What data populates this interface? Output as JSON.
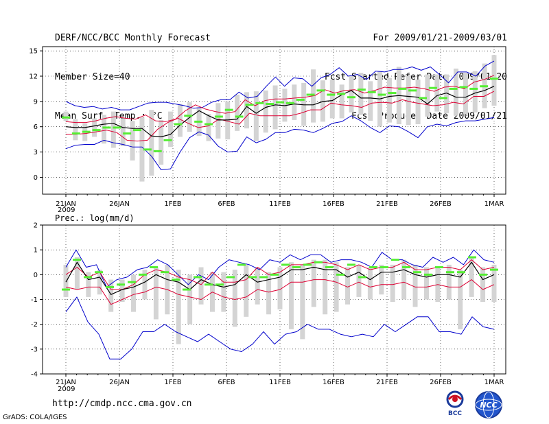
{
  "header": {
    "title": "DERF/NCC/BCC Monthly Forecast",
    "member_size": "Member Size=40",
    "variable": "Mean Surf. Temp.: °C",
    "period": "For 2009/01/21-2009/03/01",
    "started": "Fcst Started Refer Date 2009/01/20",
    "produced": "Fcst Produced Date 2009/01/21"
  },
  "footer": {
    "url": "http://cmdp.ncc.cma.gov.cn",
    "credit": "GrADS: COLA/IGES",
    "logo_bcc": "BCC",
    "logo_ncc": "NCC"
  },
  "colors": {
    "envelope": "#0000cc",
    "spread": "#dd0033",
    "mean": "#000000",
    "obs": "#55ee33",
    "box": "#d4d4d4"
  },
  "chart_data": [
    {
      "type": "line",
      "title": "Mean Surf. Temp.: °C",
      "x_tick_labels": [
        "21JAN",
        "26JAN",
        "1FEB",
        "6FEB",
        "11FEB",
        "16FEB",
        "21FEB",
        "26FEB",
        "1MAR"
      ],
      "x_year_label": "2009",
      "y_ticks": [
        0,
        3,
        6,
        9,
        12,
        15
      ],
      "ylim": [
        -2,
        15.5
      ],
      "days": 41,
      "series": [
        {
          "name": "ensemble max",
          "values": [
            3.4,
            3.8,
            3.9,
            3.9,
            4.4,
            4.1,
            3.9,
            3.6,
            3.6,
            2.5,
            0.9,
            1.0,
            3.0,
            4.7,
            5.4,
            5.0,
            3.7,
            3.0,
            3.1,
            4.8,
            4.1,
            4.5,
            5.3,
            5.3,
            5.7,
            5.6,
            5.3,
            5.8,
            6.4,
            6.6,
            7.3,
            6.7,
            5.9,
            5.3,
            6.1,
            6.0,
            5.4,
            4.7,
            6.0,
            6.3,
            6.1,
            6.5,
            6.7,
            6.7,
            6.9,
            7.1
          ]
        },
        {
          "name": "ensemble min",
          "values": [
            9.0,
            8.5,
            8.3,
            8.4,
            8.1,
            8.3,
            8.0,
            8.0,
            8.4,
            8.8,
            8.9,
            8.9,
            8.7,
            8.5,
            8.2,
            8.3,
            8.9,
            9.2,
            9.2,
            10.1,
            9.4,
            9.6,
            10.8,
            11.9,
            10.8,
            11.8,
            11.7,
            10.8,
            11.8,
            12.2,
            13.0,
            12.0,
            12.2,
            11.6,
            12.6,
            12.5,
            12.8,
            12.8,
            13.1,
            12.7,
            13.1,
            12.2,
            11.2,
            12.5,
            12.5,
            12.0,
            13.2,
            13.8
          ]
        }
      ],
      "upper_band": [
        6.6,
        6.5,
        6.5,
        6.7,
        7.0,
        7.2,
        7.0,
        6.9,
        7.4,
        6.7,
        6.6,
        6.9,
        7.9,
        8.6,
        8.1,
        7.8,
        7.6,
        7.8,
        9.2,
        8.5,
        9.1,
        9.3,
        9.3,
        9.4,
        9.5,
        9.7,
        10.4,
        10.0,
        10.3,
        10.4,
        10.0,
        10.3,
        10.7,
        10.6,
        10.6,
        10.7,
        10.5,
        10.2,
        10.7,
        10.8,
        10.5,
        11.3,
        11.6,
        12.1
      ],
      "lower_band": [
        5.1,
        5.1,
        5.2,
        5.4,
        5.6,
        5.3,
        4.4,
        4.3,
        4.4,
        5.7,
        6.5,
        7.0,
        6.4,
        5.9,
        6.1,
        6.9,
        6.6,
        6.3,
        7.6,
        7.3,
        7.3,
        7.3,
        7.3,
        7.6,
        8.0,
        8.0,
        8.8,
        8.6,
        8.5,
        8.3,
        8.8,
        8.9,
        8.8,
        9.2,
        8.9,
        8.7,
        8.5,
        8.6,
        8.9,
        8.7,
        9.6,
        9.6,
        10.2
      ],
      "ensemble_mean": [
        6.0,
        5.9,
        5.9,
        6.1,
        6.3,
        6.4,
        5.9,
        5.8,
        5.8,
        4.9,
        4.8,
        5.1,
        6.2,
        7.1,
        7.9,
        7.3,
        6.8,
        6.8,
        6.9,
        8.4,
        7.6,
        8.3,
        8.6,
        8.5,
        8.7,
        8.6,
        8.6,
        9.0,
        9.1,
        9.8,
        10.3,
        9.4,
        9.4,
        9.3,
        9.6,
        9.7,
        9.6,
        9.5,
        8.7,
        9.7,
        10.0,
        9.5,
        9.5,
        10.0,
        10.3,
        10.8
      ],
      "box_top": [
        7.8,
        6.9,
        6.4,
        7.0,
        7.4,
        7.8,
        7.0,
        6.7,
        7.1,
        8.0,
        6.8,
        7.8,
        8.7,
        8.9,
        8.3,
        7.5,
        8.8,
        9.0,
        9.8,
        10.1,
        10.2,
        10.3,
        10.9,
        10.5,
        11.0,
        11.2,
        12.8,
        11.5,
        11.6,
        11.0,
        12.0,
        12.4,
        11.4,
        12.6,
        11.8,
        13.1,
        12.0,
        11.6,
        12.2,
        12.2,
        12.2,
        12.9,
        12.4,
        12.6,
        13.5,
        14.5
      ],
      "box_bottom": [
        6.7,
        4.4,
        4.3,
        4.8,
        4.0,
        3.5,
        3.7,
        2.0,
        -0.5,
        0.2,
        1.5,
        3.6,
        4.8,
        5.4,
        4.9,
        4.3,
        4.6,
        4.5,
        5.5,
        5.8,
        4.3,
        5.3,
        5.7,
        6.6,
        6.8,
        6.1,
        6.5,
        6.6,
        7.0,
        7.0,
        7.7,
        7.4,
        6.7,
        6.0,
        6.5,
        6.3,
        6.2,
        6.3,
        7.2,
        7.8,
        7.6,
        7.3,
        7.5,
        7.7,
        8.2,
        8.5
      ],
      "observed": [
        7.1,
        5.2,
        5.4,
        5.6,
        5.9,
        5.9,
        5.2,
        5.6,
        3.3,
        3.1,
        4.4,
        6.3,
        7.3,
        6.6,
        6.3,
        7.2,
        8.0,
        7.2,
        8.6,
        8.8,
        8.7,
        8.9,
        8.8,
        9.2,
        9.8,
        10.3,
        9.8,
        9.9,
        9.5,
        10.4,
        10.1,
        9.8,
        10.0,
        10.5,
        10.3,
        9.4,
        10.6,
        9.4,
        10.5,
        10.7,
        10.5,
        10.8,
        11.7
      ]
    },
    {
      "type": "line",
      "title": "Prec.: log(mm/d)",
      "x_tick_labels": [
        "21JAN",
        "26JAN",
        "1FEB",
        "6FEB",
        "11FEB",
        "16FEB",
        "21FEB",
        "26FEB",
        "1MAR"
      ],
      "x_year_label": "2009",
      "y_ticks": [
        -4,
        -3,
        -2,
        -1,
        0,
        1,
        2
      ],
      "ylim": [
        -4,
        2
      ],
      "days": 41,
      "series": [
        {
          "name": "ensemble max",
          "values": [
            0.3,
            1.0,
            0.3,
            0.4,
            -0.5,
            -0.2,
            -0.1,
            0.2,
            0.3,
            0.6,
            0.4,
            0.0,
            -0.4,
            0.0,
            -0.2,
            0.3,
            0.6,
            0.5,
            0.4,
            0.2,
            0.6,
            0.5,
            0.8,
            0.6,
            0.8,
            0.8,
            0.5,
            0.6,
            0.6,
            0.5,
            0.3,
            0.9,
            0.6,
            0.6,
            0.4,
            0.3,
            0.7,
            0.5,
            0.7,
            0.4,
            1.0,
            0.6,
            0.5
          ]
        },
        {
          "name": "ensemble min",
          "values": [
            -1.5,
            -0.9,
            -1.9,
            -2.4,
            -3.4,
            -3.4,
            -3.0,
            -2.3,
            -2.3,
            -2.0,
            -2.3,
            -2.5,
            -2.7,
            -2.4,
            -2.7,
            -3.0,
            -3.1,
            -2.8,
            -2.3,
            -2.8,
            -2.4,
            -2.3,
            -2.0,
            -2.2,
            -2.2,
            -2.4,
            -2.5,
            -2.4,
            -2.5,
            -2.0,
            -2.3,
            -2.0,
            -1.7,
            -1.7,
            -2.3,
            -2.3,
            -2.4,
            -1.7,
            -2.1,
            -2.2
          ]
        },
        {
          "name": "observed",
          "values": [
            -0.6,
            0.6,
            -0.1,
            0.1,
            -0.5,
            -0.4,
            -0.3,
            0.0,
            0.3,
            0.1,
            -0.2,
            -0.6,
            -0.1,
            -0.4,
            -0.4,
            -0.1,
            0.4,
            -0.1,
            -0.1,
            0.0,
            0.4,
            0.3,
            0.4,
            0.5,
            0.3,
            0.0,
            0.4,
            -0.1,
            0.3,
            0.3,
            0.6,
            0.3,
            0.1,
            0.0,
            0.3,
            0.1,
            0.1,
            0.7,
            0.0,
            0.2
          ]
        }
      ],
      "upper_band": [
        0.0,
        0.3,
        -0.1,
        0.1,
        -0.6,
        -0.6,
        -0.4,
        0.0,
        0.2,
        0.1,
        -0.1,
        -0.2,
        -0.4,
        0.1,
        -0.3,
        -0.3,
        -0.2,
        0.3,
        0.0,
        0.1,
        0.4,
        0.4,
        0.5,
        0.5,
        0.4,
        0.2,
        0.4,
        0.2,
        0.3,
        0.3,
        0.5,
        0.2,
        0.2,
        0.3,
        0.3,
        0.2,
        0.6,
        0.2,
        0.3
      ],
      "lower_band": [
        -0.5,
        -0.6,
        -0.5,
        -0.5,
        -1.2,
        -1.0,
        -0.8,
        -0.7,
        -0.5,
        -0.6,
        -0.8,
        -0.9,
        -1.0,
        -0.7,
        -0.9,
        -1.0,
        -0.9,
        -0.6,
        -0.7,
        -0.6,
        -0.3,
        -0.3,
        -0.2,
        -0.2,
        -0.3,
        -0.5,
        -0.3,
        -0.5,
        -0.4,
        -0.4,
        -0.3,
        -0.5,
        -0.5,
        -0.4,
        -0.5,
        -0.5,
        -0.2,
        -0.6,
        -0.4
      ],
      "ensemble_mean": [
        -0.3,
        0.5,
        -0.2,
        -0.1,
        -0.8,
        -0.6,
        -0.5,
        -0.3,
        0.0,
        -0.2,
        -0.3,
        -0.6,
        -0.2,
        -0.4,
        -0.5,
        -0.4,
        0.0,
        -0.3,
        -0.2,
        -0.1,
        0.2,
        0.2,
        0.3,
        0.2,
        0.2,
        -0.1,
        0.1,
        -0.2,
        0.1,
        0.1,
        0.2,
        0.0,
        -0.1,
        0.0,
        0.0,
        -0.1,
        0.5,
        -0.2,
        0.0
      ],
      "box_top": [
        0.4,
        0.7,
        0.1,
        0.2,
        -0.2,
        -0.2,
        0.0,
        0.2,
        0.3,
        0.4,
        0.2,
        0.0,
        0.3,
        0.1,
        0.1,
        0.2,
        0.4,
        0.3,
        0.1,
        0.3,
        0.5,
        0.4,
        0.6,
        0.6,
        0.5,
        0.3,
        0.4,
        0.3,
        0.4,
        0.4,
        0.6,
        0.4,
        0.3,
        0.3,
        0.4,
        0.2,
        0.7,
        0.3,
        0.4
      ],
      "box_bottom": [
        -0.9,
        -0.6,
        -0.9,
        -0.8,
        -1.5,
        -1.1,
        -1.5,
        -1.0,
        -1.8,
        -1.6,
        -2.8,
        -2.0,
        -1.2,
        -1.5,
        -1.5,
        -2.1,
        -1.7,
        -1.2,
        -1.6,
        -1.4,
        -2.2,
        -2.6,
        -1.3,
        -1.6,
        -1.5,
        -1.2,
        -0.9,
        -1.0,
        -0.8,
        -1.1,
        -1.0,
        -1.3,
        -1.0,
        -1.1,
        -1.0,
        -2.2,
        -0.9,
        -1.1,
        -1.1
      ]
    }
  ]
}
